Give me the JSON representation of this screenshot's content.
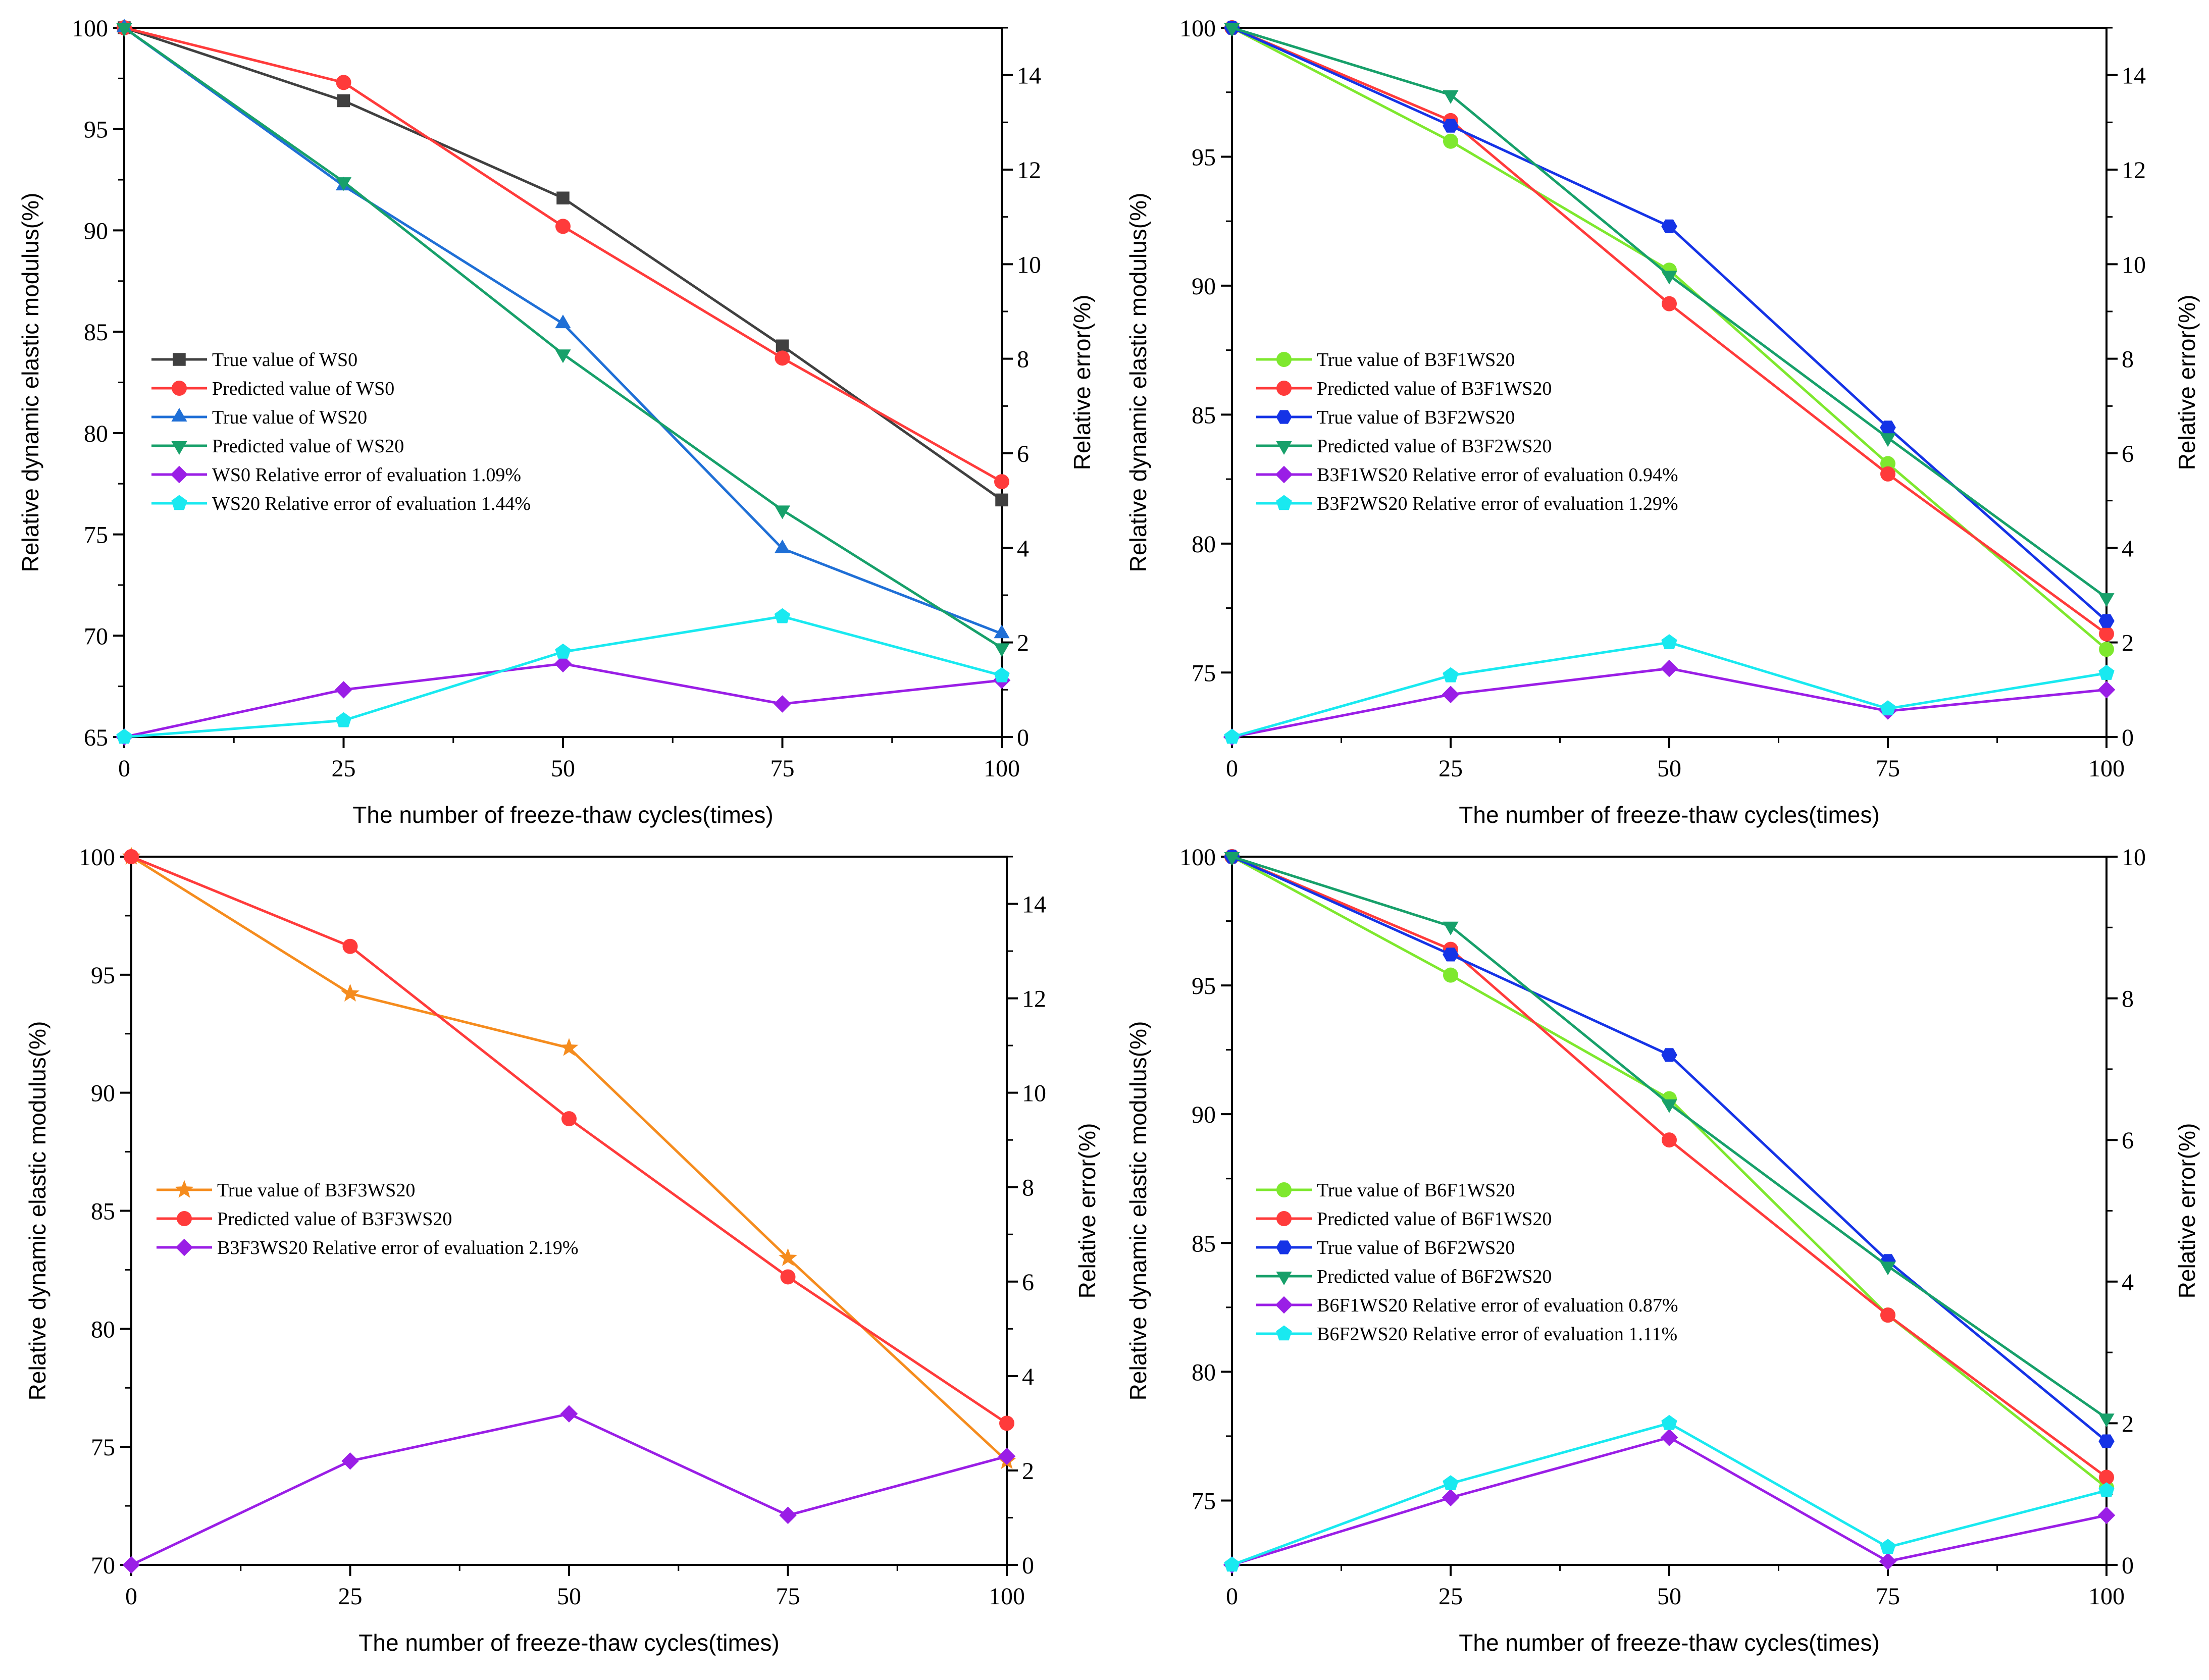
{
  "chart_data": [
    {
      "type": "line",
      "xlabel": "The number of freeze-thaw cycles(times)",
      "ylabel": "Relative dynamic elastic modulus(%)",
      "y2label": "Relative error(%)",
      "x": [
        0,
        25,
        50,
        75,
        100
      ],
      "xticks": [
        0,
        25,
        50,
        75,
        100
      ],
      "xlim": [
        0,
        100
      ],
      "ylim": [
        65,
        100
      ],
      "yticks": [
        65,
        70,
        75,
        80,
        85,
        90,
        95,
        100
      ],
      "y2lim": [
        0,
        15
      ],
      "y2ticks": [
        0,
        2,
        4,
        6,
        8,
        10,
        12,
        14
      ],
      "legend_position": "lower-left",
      "series": [
        {
          "name": "True value of WS0",
          "axis": "left",
          "color": "#404040",
          "marker": "square",
          "values": [
            100,
            96.4,
            91.6,
            84.3,
            76.7
          ]
        },
        {
          "name": "Predicted value of WS0",
          "axis": "left",
          "color": "#ff3b3b",
          "marker": "circle",
          "values": [
            100,
            97.3,
            90.2,
            83.7,
            77.6
          ]
        },
        {
          "name": "True value of WS20",
          "axis": "left",
          "color": "#1f6fd6",
          "marker": "triangle-up",
          "values": [
            100,
            92.2,
            85.4,
            74.3,
            70.1
          ]
        },
        {
          "name": "Predicted value of WS20",
          "axis": "left",
          "color": "#17a06a",
          "marker": "triangle-down",
          "values": [
            100,
            92.4,
            83.9,
            76.2,
            69.4
          ]
        },
        {
          "name": "WS0 Relative error of evaluation 1.09%",
          "axis": "right",
          "color": "#9a1ee6",
          "marker": "diamond",
          "values": [
            0,
            1.0,
            1.55,
            0.7,
            1.2
          ]
        },
        {
          "name": "WS20 Relative error of evaluation 1.44%",
          "axis": "right",
          "color": "#19e9f0",
          "marker": "pentagon",
          "values": [
            0,
            0.35,
            1.8,
            2.55,
            1.3
          ]
        }
      ]
    },
    {
      "type": "line",
      "xlabel": "The number of freeze-thaw cycles(times)",
      "ylabel": "Relative dynamic elastic modulus(%)",
      "y2label": "Relative error(%)",
      "x": [
        0,
        25,
        50,
        75,
        100
      ],
      "xticks": [
        0,
        25,
        50,
        75,
        100
      ],
      "xlim": [
        0,
        100
      ],
      "ylim": [
        72.5,
        100
      ],
      "yticks": [
        75,
        80,
        85,
        90,
        95,
        100
      ],
      "y2lim": [
        0,
        15
      ],
      "y2ticks": [
        0,
        2,
        4,
        6,
        8,
        10,
        12,
        14
      ],
      "legend_position": "lower-left",
      "series": [
        {
          "name": "True value of B3F1WS20",
          "axis": "left",
          "color": "#7ee82e",
          "marker": "circle",
          "values": [
            100,
            95.6,
            90.6,
            83.1,
            75.9
          ]
        },
        {
          "name": "Predicted value of B3F1WS20",
          "axis": "left",
          "color": "#ff3b3b",
          "marker": "circle",
          "values": [
            100,
            96.4,
            89.3,
            82.7,
            76.5
          ]
        },
        {
          "name": "True value of B3F2WS20",
          "axis": "left",
          "color": "#1533e6",
          "marker": "hexagon",
          "values": [
            100,
            96.2,
            92.3,
            84.5,
            77
          ]
        },
        {
          "name": "Predicted value of B3F2WS20",
          "axis": "left",
          "color": "#17a06a",
          "marker": "triangle-down",
          "values": [
            100,
            97.4,
            90.4,
            84.1,
            77.9
          ]
        },
        {
          "name": "B3F1WS20 Relative error of evaluation 0.94%",
          "axis": "right",
          "color": "#9a1ee6",
          "marker": "diamond",
          "values": [
            0,
            0.9,
            1.45,
            0.55,
            1.0
          ]
        },
        {
          "name": "B3F2WS20 Relative error of evaluation 1.29%",
          "axis": "right",
          "color": "#19e9f0",
          "marker": "pentagon",
          "values": [
            0,
            1.3,
            2.0,
            0.6,
            1.35
          ]
        }
      ]
    },
    {
      "type": "line",
      "xlabel": "The number of freeze-thaw cycles(times)",
      "ylabel": "Relative dynamic elastic modulus(%)",
      "y2label": "Relative error(%)",
      "x": [
        0,
        25,
        50,
        75,
        100
      ],
      "xticks": [
        0,
        25,
        50,
        75,
        100
      ],
      "xlim": [
        0,
        100
      ],
      "ylim": [
        70,
        100
      ],
      "yticks": [
        70,
        75,
        80,
        85,
        90,
        95,
        100
      ],
      "y2lim": [
        0,
        15
      ],
      "y2ticks": [
        0,
        2,
        4,
        6,
        8,
        10,
        12,
        14
      ],
      "legend_position": "lower-left",
      "series": [
        {
          "name": "True value of B3F3WS20",
          "axis": "left",
          "color": "#f58c1e",
          "marker": "star",
          "values": [
            100,
            94.2,
            91.9,
            83.0,
            74.4
          ]
        },
        {
          "name": "Predicted value of B3F3WS20",
          "axis": "left",
          "color": "#ff3b3b",
          "marker": "circle",
          "values": [
            100,
            96.2,
            88.9,
            82.2,
            76
          ]
        },
        {
          "name": "B3F3WS20 Relative error of evaluation 2.19%",
          "axis": "right",
          "color": "#9a1ee6",
          "marker": "diamond",
          "values": [
            0,
            2.2,
            3.2,
            1.05,
            2.3
          ]
        }
      ]
    },
    {
      "type": "line",
      "xlabel": "The number of freeze-thaw cycles(times)",
      "ylabel": "Relative dynamic elastic modulus(%)",
      "y2label": "Relative error(%)",
      "x": [
        0,
        25,
        50,
        75,
        100
      ],
      "xticks": [
        0,
        25,
        50,
        75,
        100
      ],
      "xlim": [
        0,
        100
      ],
      "ylim": [
        72.5,
        100
      ],
      "yticks": [
        75,
        80,
        85,
        90,
        95,
        100
      ],
      "y2lim": [
        0,
        10
      ],
      "y2ticks": [
        0,
        2,
        4,
        6,
        8,
        10
      ],
      "legend_position": "lower-left",
      "series": [
        {
          "name": "True value of B6F1WS20",
          "axis": "left",
          "color": "#7ee82e",
          "marker": "circle",
          "values": [
            100,
            95.4,
            90.6,
            82.2,
            75.5
          ]
        },
        {
          "name": "Predicted value of B6F1WS20",
          "axis": "left",
          "color": "#ff3b3b",
          "marker": "circle",
          "values": [
            100,
            96.4,
            89.0,
            82.2,
            75.9
          ]
        },
        {
          "name": "True value of B6F2WS20",
          "axis": "left",
          "color": "#1533e6",
          "marker": "hexagon",
          "values": [
            100,
            96.2,
            92.3,
            84.3,
            77.3
          ]
        },
        {
          "name": "Predicted value of B6F2WS20",
          "axis": "left",
          "color": "#17a06a",
          "marker": "triangle-down",
          "values": [
            100,
            97.3,
            90.4,
            84.1,
            78.2
          ]
        },
        {
          "name": "B6F1WS20 Relative error of evaluation 0.87%",
          "axis": "right",
          "color": "#9a1ee6",
          "marker": "diamond",
          "values": [
            0,
            0.95,
            1.8,
            0.05,
            0.7
          ]
        },
        {
          "name": "B6F2WS20 Relative error of evaluation 1.11%",
          "axis": "right",
          "color": "#19e9f0",
          "marker": "pentagon",
          "values": [
            0,
            1.15,
            2.0,
            0.25,
            1.05
          ]
        }
      ]
    }
  ]
}
